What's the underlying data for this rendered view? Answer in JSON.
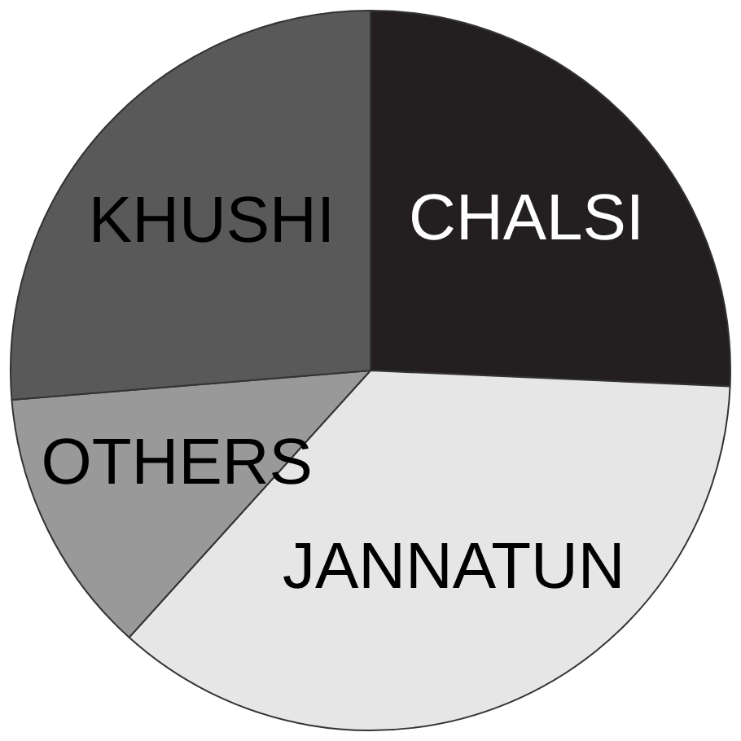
{
  "chart_data": {
    "type": "pie",
    "categories": [
      "CHALSI",
      "JANNATUN",
      "OTHERS",
      "KHUSHI"
    ],
    "values": [
      25.7,
      36,
      12,
      26.3
    ],
    "colors": [
      "#231f20",
      "#e6e6e6",
      "#999999",
      "#595959"
    ],
    "legend": false
  }
}
